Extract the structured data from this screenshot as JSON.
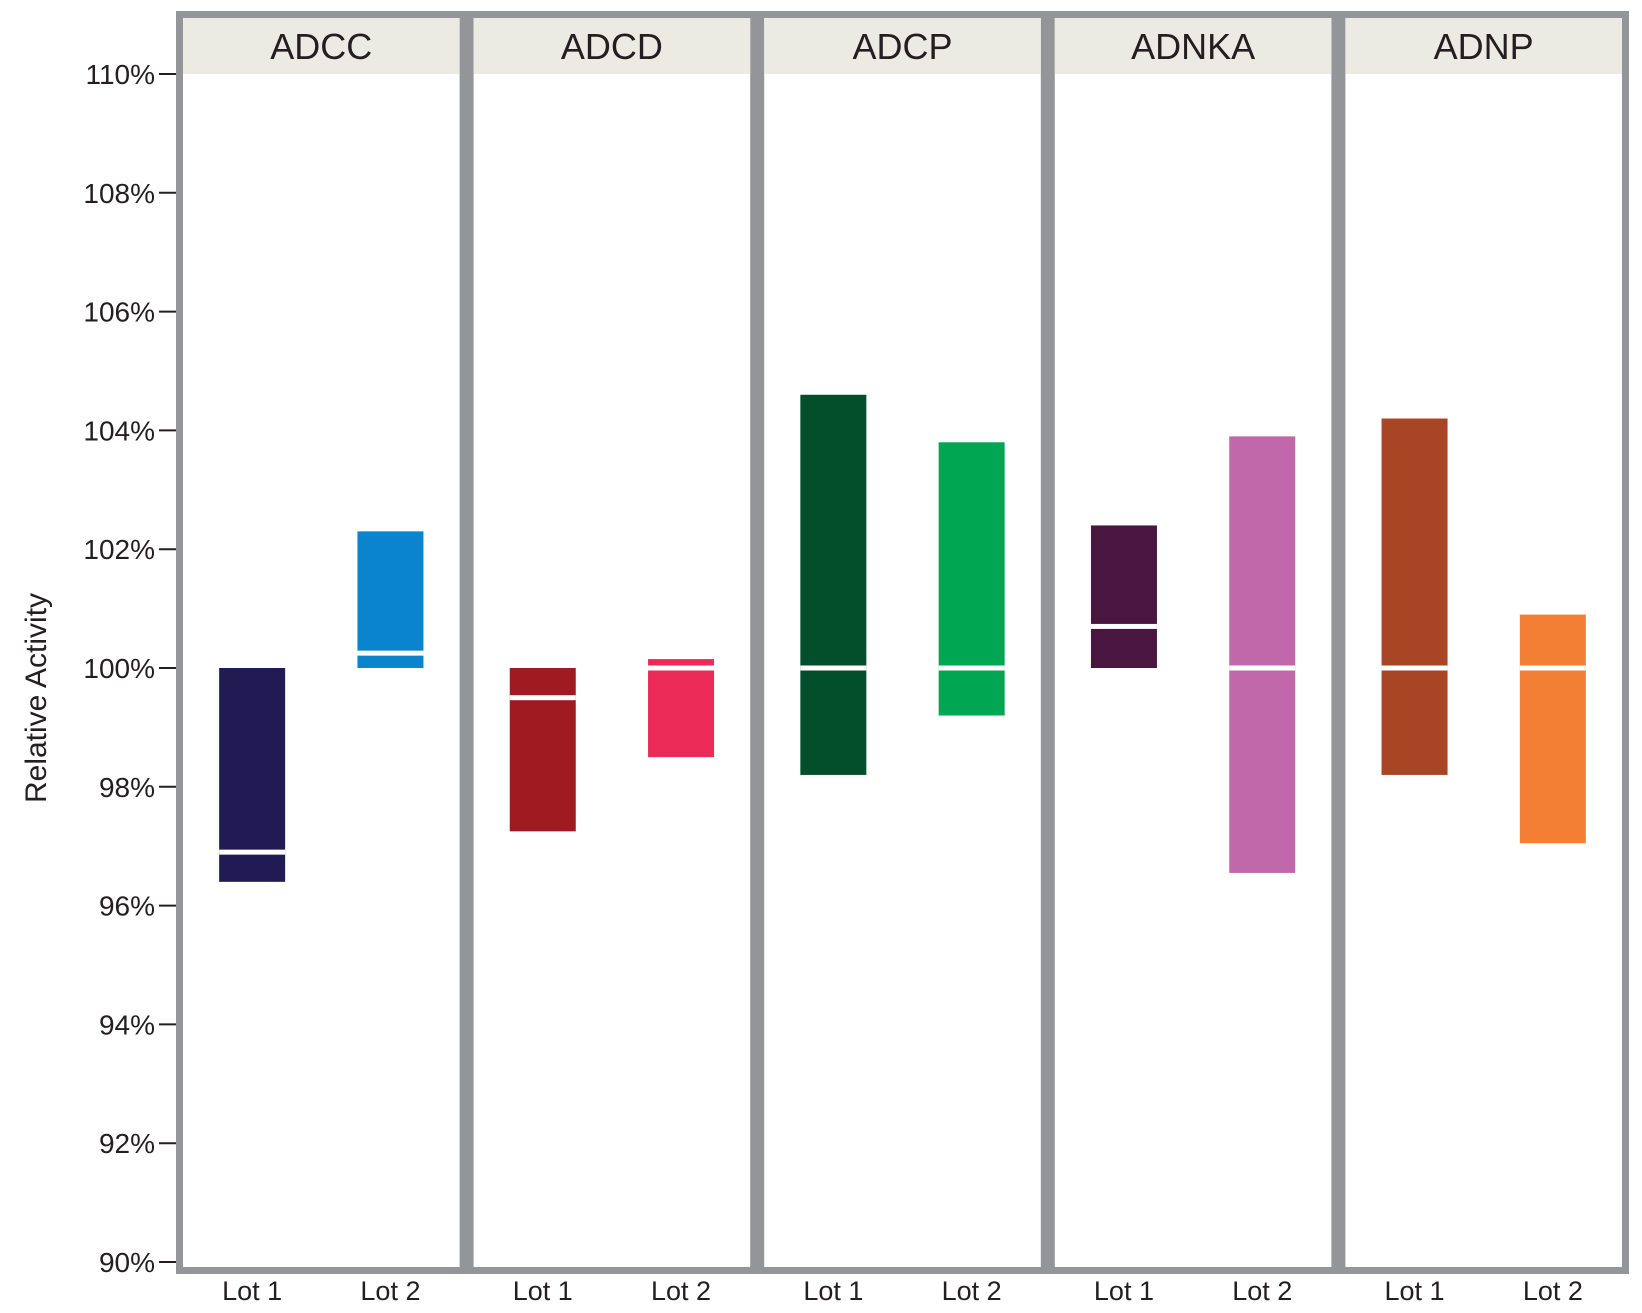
{
  "chart_data": {
    "type": "bar",
    "subtype": "floating-range-faceted",
    "ylabel": "Relative Activity",
    "ylim": [
      90,
      110
    ],
    "y_ticks": [
      90,
      92,
      94,
      96,
      98,
      100,
      102,
      104,
      106,
      108,
      110
    ],
    "y_tick_labels": [
      "90%",
      "92%",
      "94%",
      "96%",
      "98%",
      "100%",
      "102%",
      "104%",
      "106%",
      "108%",
      "110%"
    ],
    "grid": false,
    "panel_border_color": "#939598",
    "strip_color": "#ebebe3",
    "median_line_color": "#ffffff",
    "categories": [
      "Lot 1",
      "Lot 2"
    ],
    "panels": [
      {
        "title": "ADCC",
        "bars": [
          {
            "category": "Lot 1",
            "low": 96.4,
            "high": 100.0,
            "mid": 96.9,
            "color": "#221a52"
          },
          {
            "category": "Lot 2",
            "low": 100.0,
            "high": 102.3,
            "mid": 100.25,
            "color": "#0a84cc"
          }
        ]
      },
      {
        "title": "ADCD",
        "bars": [
          {
            "category": "Lot 1",
            "low": 97.25,
            "high": 100.0,
            "mid": 99.5,
            "color": "#a01b21"
          },
          {
            "category": "Lot 2",
            "low": 98.5,
            "high": 100.15,
            "mid": 100.0,
            "color": "#ec2a57"
          }
        ]
      },
      {
        "title": "ADCP",
        "bars": [
          {
            "category": "Lot 1",
            "low": 98.2,
            "high": 104.6,
            "mid": 100.0,
            "color": "#034f2c"
          },
          {
            "category": "Lot 2",
            "low": 99.2,
            "high": 103.8,
            "mid": 100.0,
            "color": "#00a651"
          }
        ]
      },
      {
        "title": "ADNKA",
        "bars": [
          {
            "category": "Lot 1",
            "low": 100.0,
            "high": 102.4,
            "mid": 100.7,
            "color": "#48163f"
          },
          {
            "category": "Lot 2",
            "low": 96.55,
            "high": 103.9,
            "mid": 100.0,
            "color": "#c068aa"
          }
        ]
      },
      {
        "title": "ADNP",
        "bars": [
          {
            "category": "Lot 1",
            "low": 98.2,
            "high": 104.2,
            "mid": 100.0,
            "color": "#a84525"
          },
          {
            "category": "Lot 2",
            "low": 97.05,
            "high": 100.9,
            "mid": 100.0,
            "color": "#f37f35"
          }
        ]
      }
    ]
  }
}
